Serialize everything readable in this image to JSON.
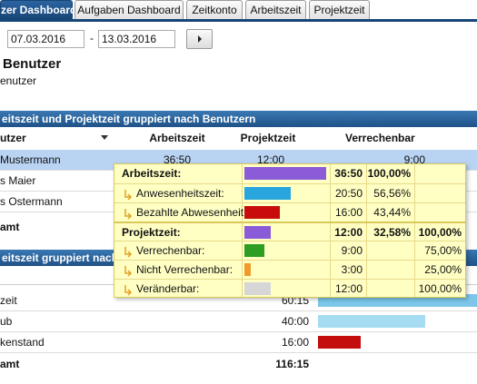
{
  "tabs": [
    "zer Dashboard",
    "Aufgaben Dashboard",
    "Zeitkonto",
    "Arbeitszeit",
    "Projektzeit"
  ],
  "filter": {
    "date_from": "07.03.2016",
    "separator": "-",
    "date_to": "13.03.2016"
  },
  "header": {
    "title": "Benutzer",
    "subtitle": "enutzer"
  },
  "table1": {
    "title": "eitszeit und Projektzeit gruppiert nach Benutzern",
    "columns": [
      "utzer",
      "Arbeitszeit",
      "Projektzeit",
      "Verrechenbar"
    ],
    "rows": [
      [
        "Mustermann",
        "36:50",
        "12:00",
        "9:00"
      ],
      [
        "s Maier"
      ],
      [
        "s Ostermann"
      ]
    ],
    "total": "amt"
  },
  "table2": {
    "title": "eitszeit gruppiert nach Ar",
    "rows": [
      {
        "label": "zeit",
        "time": "60:15",
        "color": "#7cc6ea"
      },
      {
        "label": "ub",
        "time": "40:00",
        "color": "#a6dcf2"
      },
      {
        "label": "kenstand",
        "time": "16:00",
        "color": "#c40d0d"
      }
    ],
    "total": {
      "label": "amt",
      "time": "116:15"
    }
  },
  "tooltip": {
    "rows": [
      {
        "label": "Arbeitszeit:",
        "bold": true,
        "color": "#8a5cd8",
        "time": "36:50",
        "share": "100,00%"
      },
      {
        "label": "Anwesenheitszeit:",
        "bold": false,
        "color": "#2aa6df",
        "time": "20:50",
        "share": "56,56%"
      },
      {
        "label": "Bezahlte Abwesenheit:",
        "bold": false,
        "color": "#c80b0b",
        "time": "16:00",
        "share": "43,44%"
      },
      {
        "label": "Projektzeit:",
        "bold": true,
        "color": "#8a5cd8",
        "time": "12:00",
        "share": "32,58%",
        "share_of_group": "100,00%"
      },
      {
        "label": "Verrechenbar:",
        "bold": false,
        "color": "#2e9e22",
        "time": "9:00",
        "share_of_group": "75,00%"
      },
      {
        "label": "Nicht Verrechenbar:",
        "bold": false,
        "color": "#f09a2a",
        "time": "3:00",
        "share_of_group": "25,00%"
      },
      {
        "label": "Veränderbar:",
        "bold": false,
        "color": "#d6d6d6",
        "time": "12:00",
        "share_of_group": "100,00%"
      }
    ]
  }
}
